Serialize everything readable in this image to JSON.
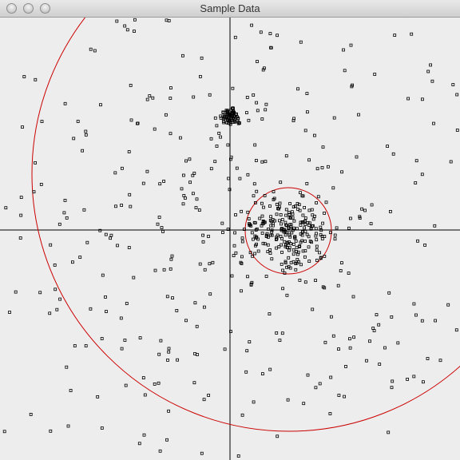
{
  "window": {
    "title": "Sample Data"
  },
  "colors": {
    "background": "#ededed",
    "axis": "#000000",
    "points": "#000000",
    "circles": "#cc0000"
  },
  "icons": [
    "close-traffic-light-icon",
    "minimize-traffic-light-icon",
    "zoom-traffic-light-icon"
  ]
}
